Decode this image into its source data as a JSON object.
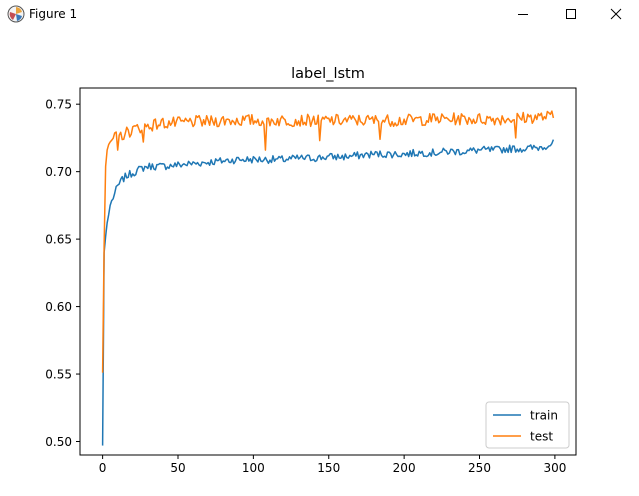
{
  "window": {
    "title": "Figure 1",
    "app_icon": "matplotlib-icon",
    "controls": [
      "minimize-icon",
      "maximize-icon",
      "close-icon"
    ]
  },
  "chart_data": {
    "type": "line",
    "title": "label_lstm",
    "xlabel": "",
    "ylabel": "",
    "xlim": [
      -15,
      314
    ],
    "ylim": [
      0.49,
      0.762
    ],
    "xticks": [
      0,
      50,
      100,
      150,
      200,
      250,
      300
    ],
    "yticks": [
      0.5,
      0.55,
      0.6,
      0.65,
      0.7,
      0.75
    ],
    "ytick_labels": [
      "0.50",
      "0.55",
      "0.60",
      "0.65",
      "0.70",
      "0.75"
    ],
    "grid": false,
    "legend_position": "lower-right",
    "series": [
      {
        "name": "train",
        "color": "#1f77b4",
        "anchors": [
          [
            0,
            0.497
          ],
          [
            1,
            0.64
          ],
          [
            2,
            0.652
          ],
          [
            3,
            0.662
          ],
          [
            4,
            0.668
          ],
          [
            5,
            0.675
          ],
          [
            7,
            0.681
          ],
          [
            10,
            0.689
          ],
          [
            13,
            0.694
          ],
          [
            16,
            0.697
          ],
          [
            20,
            0.699
          ],
          [
            25,
            0.702
          ],
          [
            30,
            0.704
          ],
          [
            40,
            0.704
          ],
          [
            50,
            0.705
          ],
          [
            60,
            0.706
          ],
          [
            70,
            0.707
          ],
          [
            80,
            0.708
          ],
          [
            90,
            0.709
          ],
          [
            100,
            0.709
          ],
          [
            110,
            0.709
          ],
          [
            120,
            0.709
          ],
          [
            130,
            0.71
          ],
          [
            140,
            0.71
          ],
          [
            150,
            0.711
          ],
          [
            160,
            0.711
          ],
          [
            170,
            0.712
          ],
          [
            180,
            0.713
          ],
          [
            190,
            0.713
          ],
          [
            200,
            0.713
          ],
          [
            210,
            0.714
          ],
          [
            220,
            0.714
          ],
          [
            230,
            0.715
          ],
          [
            240,
            0.715
          ],
          [
            250,
            0.716
          ],
          [
            260,
            0.716
          ],
          [
            270,
            0.717
          ],
          [
            280,
            0.717
          ],
          [
            290,
            0.718
          ],
          [
            299,
            0.721
          ]
        ],
        "noise": 0.0028
      },
      {
        "name": "test",
        "color": "#ff7f0e",
        "anchors": [
          [
            0,
            0.551
          ],
          [
            1,
            0.645
          ],
          [
            2,
            0.704
          ],
          [
            3,
            0.716
          ],
          [
            4,
            0.72
          ],
          [
            5,
            0.722
          ],
          [
            8,
            0.725
          ],
          [
            12,
            0.727
          ],
          [
            16,
            0.729
          ],
          [
            20,
            0.731
          ],
          [
            25,
            0.733
          ],
          [
            30,
            0.734
          ],
          [
            40,
            0.736
          ],
          [
            50,
            0.736
          ],
          [
            60,
            0.737
          ],
          [
            70,
            0.737
          ],
          [
            80,
            0.738
          ],
          [
            100,
            0.738
          ],
          [
            120,
            0.738
          ],
          [
            140,
            0.738
          ],
          [
            160,
            0.738
          ],
          [
            180,
            0.738
          ],
          [
            200,
            0.738
          ],
          [
            220,
            0.739
          ],
          [
            240,
            0.739
          ],
          [
            260,
            0.739
          ],
          [
            280,
            0.74
          ],
          [
            299,
            0.741
          ]
        ],
        "noise": 0.0045,
        "dips": [
          [
            10,
            0.716
          ],
          [
            14,
            0.724
          ],
          [
            27,
            0.722
          ],
          [
            108,
            0.716
          ],
          [
            144,
            0.723
          ],
          [
            184,
            0.724
          ],
          [
            274,
            0.725
          ]
        ]
      }
    ]
  }
}
